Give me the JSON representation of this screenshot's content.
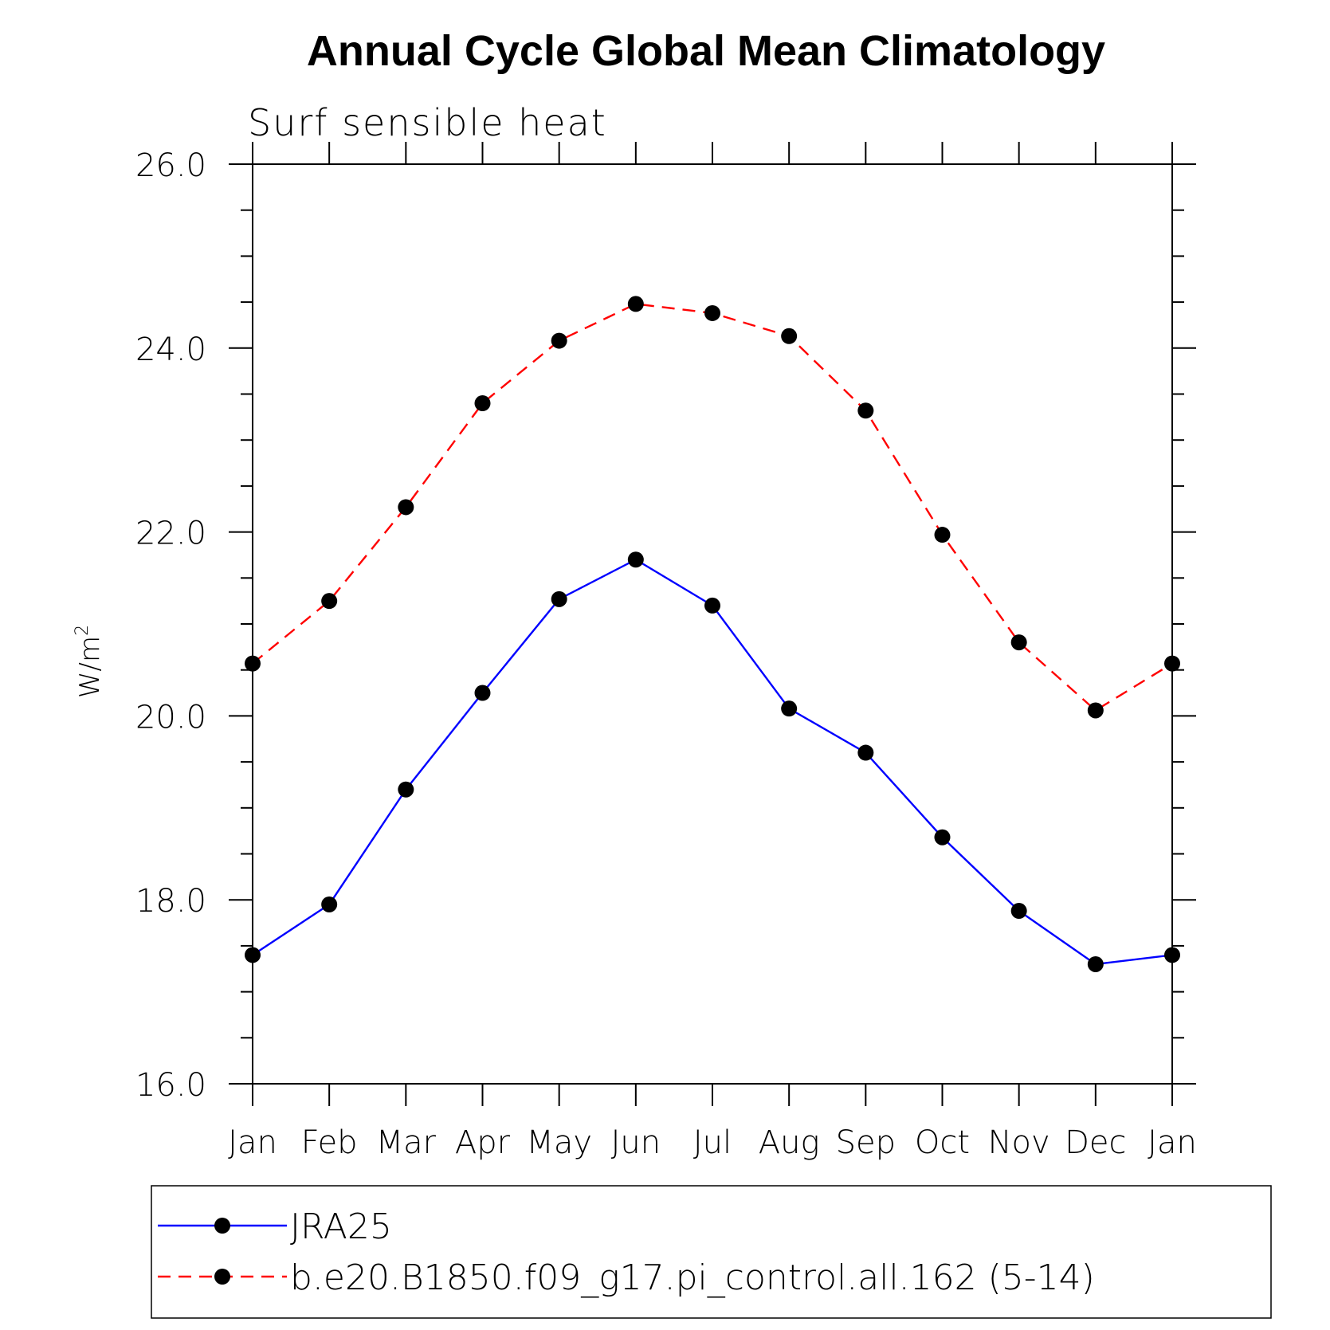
{
  "chart_data": {
    "type": "line",
    "title": "Annual Cycle Global Mean Climatology",
    "subtitle": "Surf sensible heat",
    "ylabel": "W/m",
    "ylabel_sup": "2",
    "categories": [
      "Jan",
      "Feb",
      "Mar",
      "Apr",
      "May",
      "Jun",
      "Jul",
      "Aug",
      "Sep",
      "Oct",
      "Nov",
      "Dec",
      "Jan"
    ],
    "ylim": [
      16.0,
      26.0
    ],
    "yticks": [
      "16.0",
      "18.0",
      "20.0",
      "22.0",
      "24.0",
      "26.0"
    ],
    "legend_position": "bottom",
    "series": [
      {
        "name": "JRA25",
        "color": "#0000ff",
        "style": "solid",
        "values": [
          17.4,
          17.95,
          19.2,
          20.25,
          21.27,
          21.7,
          21.2,
          20.08,
          19.6,
          18.68,
          17.88,
          17.3,
          17.4
        ]
      },
      {
        "name": "b.e20.B1850.f09_g17.pi_control.all.162 (5-14)",
        "color": "#ff0000",
        "style": "dashed",
        "values": [
          20.57,
          21.25,
          22.27,
          23.4,
          24.08,
          24.48,
          24.38,
          24.13,
          23.32,
          21.97,
          20.8,
          20.06,
          20.57
        ]
      }
    ]
  }
}
